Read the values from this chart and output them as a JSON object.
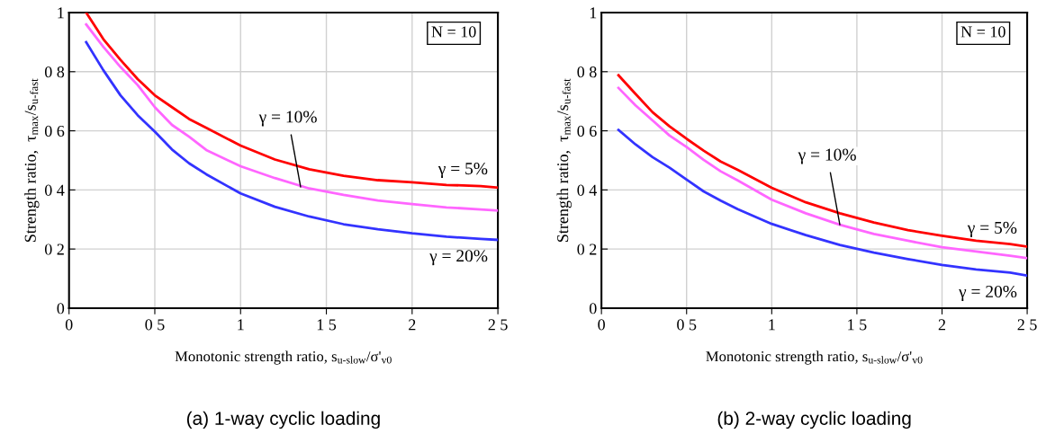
{
  "chart_data": [
    {
      "type": "line",
      "title": "(a) 1-way cyclic loading",
      "xlabel": "Monotonic strength ratio, s$_{u-slow}$/σ'$_{v0}$",
      "ylabel": "Strength ratio,  τ$_{max}$/s$_{u-fast}$",
      "xlim": [
        0,
        2.5
      ],
      "ylim": [
        0,
        1
      ],
      "xticks": [
        0,
        {
          "value": 0.5,
          "label": "0 5"
        },
        1,
        {
          "value": 1.5,
          "label": "1 5"
        },
        2,
        {
          "value": 2.5,
          "label": "2 5"
        }
      ],
      "yticks": [
        0,
        {
          "value": 0.2,
          "label": "0 2"
        },
        {
          "value": 0.4,
          "label": "0 4"
        },
        {
          "value": 0.6,
          "label": "0 6"
        },
        {
          "value": 0.8,
          "label": "0 8"
        },
        1
      ],
      "grid": true,
      "line_style": "solid",
      "marker": "none",
      "x": [
        0.1,
        0.2,
        0.3,
        0.4,
        0.5,
        0.6,
        0.7,
        0.8,
        1.0,
        1.2,
        1.4,
        1.6,
        1.8,
        2.0,
        2.2,
        2.4,
        2.5
      ],
      "series": [
        {
          "color": "#ff0000",
          "values": [
            1.0,
            0.91,
            0.84,
            0.775,
            0.72,
            0.68,
            0.64,
            0.61,
            0.55,
            0.503,
            0.47,
            0.448,
            0.433,
            0.426,
            0.417,
            0.413,
            0.408
          ]
        },
        {
          "color": "#ff66ff",
          "values": [
            0.96,
            0.884,
            0.816,
            0.755,
            0.68,
            0.62,
            0.58,
            0.535,
            0.48,
            0.44,
            0.405,
            0.383,
            0.364,
            0.352,
            0.341,
            0.334,
            0.33
          ]
        },
        {
          "color": "#3333ff",
          "values": [
            0.9,
            0.805,
            0.72,
            0.653,
            0.597,
            0.537,
            0.49,
            0.453,
            0.388,
            0.343,
            0.31,
            0.284,
            0.267,
            0.253,
            0.242,
            0.234,
            0.231
          ]
        }
      ],
      "annotations": [
        {
          "text": "γ = 5%",
          "x": 2.5,
          "y": 0.408
        },
        {
          "text": "γ = 10%",
          "x": 1.35,
          "y": 0.41
        },
        {
          "text": "γ = 20%",
          "x": 2.5,
          "y": 0.231
        },
        "N = 10"
      ]
    },
    {
      "type": "line",
      "title": "(b) 2-way cyclic loading",
      "xlabel": "Monotonic strength ratio, s$_{u-slow}$/σ'$_{v0}$",
      "ylabel": "Strength ratio,  τ$_{max}$/s$_{u-fast}$",
      "xlim": [
        0,
        2.5
      ],
      "ylim": [
        0,
        1
      ],
      "xticks": [
        0,
        {
          "value": 0.5,
          "label": "0 5"
        },
        1,
        {
          "value": 1.5,
          "label": "1 5"
        },
        2,
        {
          "value": 2.5,
          "label": "2 5"
        }
      ],
      "yticks": [
        0,
        {
          "value": 0.2,
          "label": "0 2"
        },
        {
          "value": 0.4,
          "label": "0 4"
        },
        {
          "value": 0.6,
          "label": "0 6"
        },
        {
          "value": 0.8,
          "label": "0 8"
        },
        1
      ],
      "grid": true,
      "line_style": "solid",
      "marker": "none",
      "x": [
        0.1,
        0.2,
        0.3,
        0.4,
        0.5,
        0.6,
        0.7,
        0.8,
        1.0,
        1.2,
        1.4,
        1.6,
        1.8,
        2.0,
        2.2,
        2.4,
        2.5
      ],
      "series": [
        {
          "color": "#ff0000",
          "values": [
            0.788,
            0.725,
            0.663,
            0.615,
            0.573,
            0.533,
            0.496,
            0.468,
            0.407,
            0.358,
            0.321,
            0.29,
            0.264,
            0.245,
            0.228,
            0.217,
            0.208
          ]
        },
        {
          "color": "#ff66ff",
          "values": [
            0.745,
            0.686,
            0.635,
            0.584,
            0.545,
            0.502,
            0.463,
            0.432,
            0.367,
            0.321,
            0.282,
            0.251,
            0.228,
            0.206,
            0.192,
            0.177,
            0.169
          ]
        },
        {
          "color": "#3333ff",
          "values": [
            0.603,
            0.554,
            0.511,
            0.475,
            0.435,
            0.395,
            0.364,
            0.335,
            0.285,
            0.247,
            0.214,
            0.188,
            0.166,
            0.146,
            0.131,
            0.12,
            0.11
          ]
        }
      ],
      "annotations": [
        {
          "text": "γ = 5%",
          "x": 2.5,
          "y": 0.208
        },
        {
          "text": "γ = 10%",
          "x": 1.4,
          "y": 0.282
        },
        {
          "text": "γ = 20%",
          "x": 2.5,
          "y": 0.11
        },
        "N = 10"
      ]
    }
  ]
}
